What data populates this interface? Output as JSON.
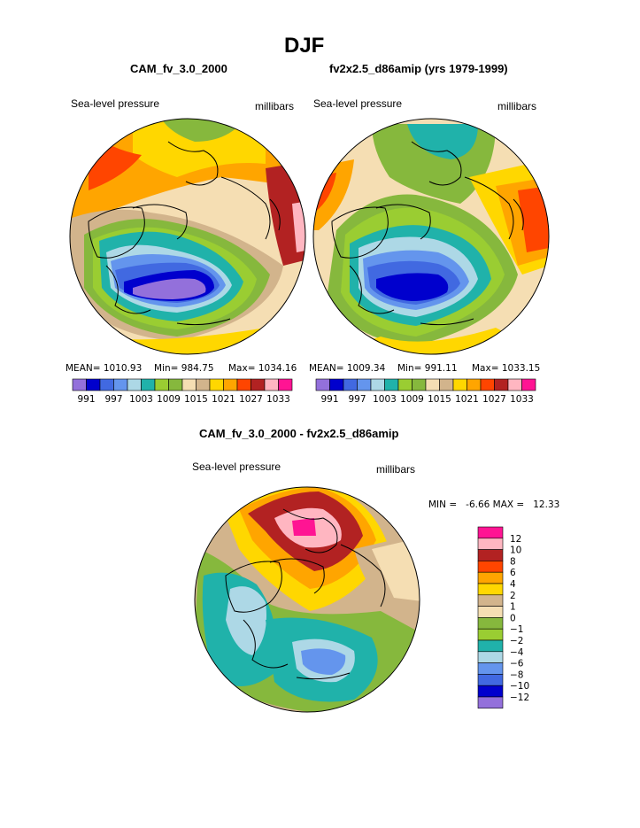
{
  "page_title": "DJF",
  "panels": [
    {
      "title": "CAM_fv_3.0_2000",
      "left_label": "Sea-level pressure",
      "right_label": "millibars",
      "stats": {
        "mean": "MEAN= 1010.93",
        "min": "Min= 984.75",
        "max": "Max= 1034.16"
      }
    },
    {
      "title": "fv2x2.5_d86amip (yrs 1979-1999)",
      "left_label": "Sea-level pressure",
      "right_label": "millibars",
      "stats": {
        "mean": "MEAN= 1009.34",
        "min": "Min= 991.11",
        "max": "Max= 1033.15"
      }
    },
    {
      "title": "CAM_fv_3.0_2000 - fv2x2.5_d86amip",
      "left_label": "Sea-level pressure",
      "right_label": "millibars",
      "stats": {
        "min_max": "MIN =   -6.66 MAX =   12.33"
      }
    }
  ],
  "colors": {
    "purple": "#9370db",
    "navy": "#0000cd",
    "royal": "#4169e1",
    "cornflower": "#6495ed",
    "lightblue": "#add8e6",
    "teal": "#20b2aa",
    "lightgreen": "#9acd32",
    "green": "#86b83d",
    "beige": "#f5deb3",
    "tan": "#d2b48c",
    "yellow": "#ffd700",
    "orange": "#ffa500",
    "orangered": "#ff4500",
    "firebrick": "#b22222",
    "pink": "#ffb6c1",
    "magenta": "#ff1493"
  },
  "chart_data": [
    {
      "type": "heatmap",
      "title": "CAM_fv_3.0_2000",
      "variable": "Sea-level pressure",
      "units": "millibars",
      "mean": 1010.93,
      "min": 984.75,
      "max": 1034.16,
      "colorbar": {
        "orientation": "horizontal",
        "levels": [
          991,
          994,
          997,
          1000,
          1003,
          1006,
          1009,
          1012,
          1015,
          1018,
          1021,
          1024,
          1027,
          1030,
          1033
        ],
        "tick_labels": [
          "991",
          "997",
          "1003",
          "1009",
          "1015",
          "1021",
          "1027",
          "1033"
        ],
        "colors": [
          "#9370db",
          "#0000cd",
          "#4169e1",
          "#6495ed",
          "#add8e6",
          "#20b2aa",
          "#9acd32",
          "#86b83d",
          "#f5deb3",
          "#d2b48c",
          "#ffd700",
          "#ffa500",
          "#ff4500",
          "#b22222",
          "#ffb6c1",
          "#ff1493"
        ]
      }
    },
    {
      "type": "heatmap",
      "title": "fv2x2.5_d86amip (yrs 1979-1999)",
      "variable": "Sea-level pressure",
      "units": "millibars",
      "mean": 1009.34,
      "min": 991.11,
      "max": 1033.15,
      "colorbar": {
        "orientation": "horizontal",
        "levels": [
          991,
          994,
          997,
          1000,
          1003,
          1006,
          1009,
          1012,
          1015,
          1018,
          1021,
          1024,
          1027,
          1030,
          1033
        ],
        "tick_labels": [
          "991",
          "997",
          "1003",
          "1009",
          "1015",
          "1021",
          "1027",
          "1033"
        ],
        "colors": [
          "#9370db",
          "#0000cd",
          "#4169e1",
          "#6495ed",
          "#add8e6",
          "#20b2aa",
          "#9acd32",
          "#86b83d",
          "#f5deb3",
          "#d2b48c",
          "#ffd700",
          "#ffa500",
          "#ff4500",
          "#b22222",
          "#ffb6c1",
          "#ff1493"
        ]
      }
    },
    {
      "type": "heatmap",
      "title": "CAM_fv_3.0_2000 - fv2x2.5_d86amip",
      "variable": "Sea-level pressure",
      "units": "millibars",
      "min": -6.66,
      "max": 12.33,
      "colorbar": {
        "orientation": "vertical",
        "levels": [
          12,
          10,
          8,
          6,
          4,
          2,
          1,
          0,
          -1,
          -2,
          -4,
          -6,
          -8,
          -10,
          -12
        ],
        "tick_labels": [
          "12",
          "10",
          "8",
          "6",
          "4",
          "2",
          "1",
          "0",
          "−1",
          "−2",
          "−4",
          "−6",
          "−8",
          "−10",
          "−12"
        ],
        "colors": [
          "#ff1493",
          "#ffb6c1",
          "#b22222",
          "#ff4500",
          "#ffa500",
          "#ffd700",
          "#d2b48c",
          "#f5deb3",
          "#86b83d",
          "#9acd32",
          "#20b2aa",
          "#add8e6",
          "#6495ed",
          "#4169e1",
          "#0000cd",
          "#9370db"
        ]
      }
    }
  ]
}
